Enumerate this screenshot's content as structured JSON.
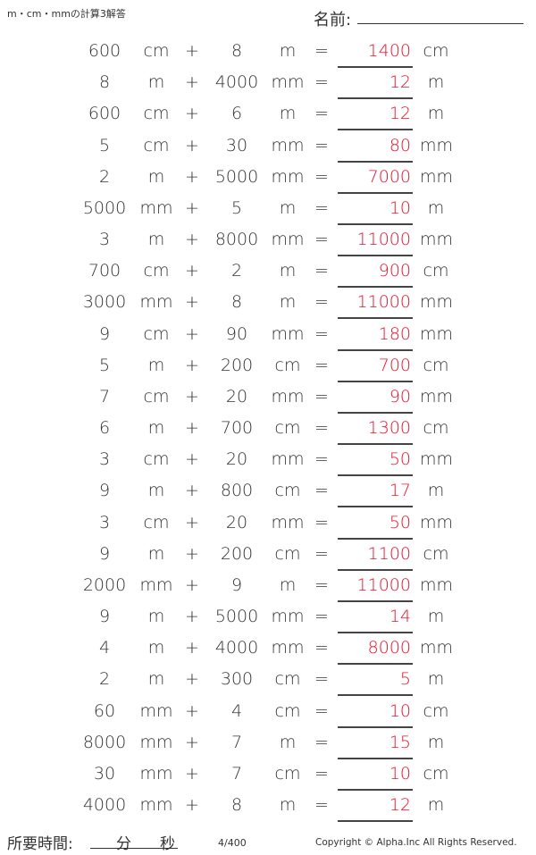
{
  "header": {
    "title": "m・cm・mmの計算3解答",
    "name_label": "名前:"
  },
  "colors": {
    "answer": "#e8102a",
    "text": "#333333"
  },
  "operator_plus": "+",
  "operator_equals": "=",
  "problems": [
    {
      "a": "600",
      "ua": "cm",
      "b": "8",
      "ub": "m",
      "ans": "1400",
      "uans": "cm"
    },
    {
      "a": "8",
      "ua": "m",
      "b": "4000",
      "ub": "mm",
      "ans": "12",
      "uans": "m"
    },
    {
      "a": "600",
      "ua": "cm",
      "b": "6",
      "ub": "m",
      "ans": "12",
      "uans": "m"
    },
    {
      "a": "5",
      "ua": "cm",
      "b": "30",
      "ub": "mm",
      "ans": "80",
      "uans": "mm"
    },
    {
      "a": "2",
      "ua": "m",
      "b": "5000",
      "ub": "mm",
      "ans": "7000",
      "uans": "mm"
    },
    {
      "a": "5000",
      "ua": "mm",
      "b": "5",
      "ub": "m",
      "ans": "10",
      "uans": "m"
    },
    {
      "a": "3",
      "ua": "m",
      "b": "8000",
      "ub": "mm",
      "ans": "11000",
      "uans": "mm"
    },
    {
      "a": "700",
      "ua": "cm",
      "b": "2",
      "ub": "m",
      "ans": "900",
      "uans": "cm"
    },
    {
      "a": "3000",
      "ua": "mm",
      "b": "8",
      "ub": "m",
      "ans": "11000",
      "uans": "mm"
    },
    {
      "a": "9",
      "ua": "cm",
      "b": "90",
      "ub": "mm",
      "ans": "180",
      "uans": "mm"
    },
    {
      "a": "5",
      "ua": "m",
      "b": "200",
      "ub": "cm",
      "ans": "700",
      "uans": "cm"
    },
    {
      "a": "7",
      "ua": "cm",
      "b": "20",
      "ub": "mm",
      "ans": "90",
      "uans": "mm"
    },
    {
      "a": "6",
      "ua": "m",
      "b": "700",
      "ub": "cm",
      "ans": "1300",
      "uans": "cm"
    },
    {
      "a": "3",
      "ua": "cm",
      "b": "20",
      "ub": "mm",
      "ans": "50",
      "uans": "mm"
    },
    {
      "a": "9",
      "ua": "m",
      "b": "800",
      "ub": "cm",
      "ans": "17",
      "uans": "m"
    },
    {
      "a": "3",
      "ua": "cm",
      "b": "20",
      "ub": "mm",
      "ans": "50",
      "uans": "mm"
    },
    {
      "a": "9",
      "ua": "m",
      "b": "200",
      "ub": "cm",
      "ans": "1100",
      "uans": "cm"
    },
    {
      "a": "2000",
      "ua": "mm",
      "b": "9",
      "ub": "m",
      "ans": "11000",
      "uans": "mm"
    },
    {
      "a": "9",
      "ua": "m",
      "b": "5000",
      "ub": "mm",
      "ans": "14",
      "uans": "m"
    },
    {
      "a": "4",
      "ua": "m",
      "b": "4000",
      "ub": "mm",
      "ans": "8000",
      "uans": "mm"
    },
    {
      "a": "2",
      "ua": "m",
      "b": "300",
      "ub": "cm",
      "ans": "5",
      "uans": "m"
    },
    {
      "a": "60",
      "ua": "mm",
      "b": "4",
      "ub": "cm",
      "ans": "10",
      "uans": "cm"
    },
    {
      "a": "8000",
      "ua": "mm",
      "b": "7",
      "ub": "m",
      "ans": "15",
      "uans": "m"
    },
    {
      "a": "30",
      "ua": "mm",
      "b": "7",
      "ub": "cm",
      "ans": "10",
      "uans": "cm"
    },
    {
      "a": "4000",
      "ua": "mm",
      "b": "8",
      "ub": "m",
      "ans": "12",
      "uans": "m"
    }
  ],
  "footer": {
    "time_label": "所要時間:",
    "minutes": "分",
    "seconds": "秒",
    "page": "4/400",
    "copyright": "Copyright © Alpha.Inc All Rights Reserved."
  }
}
